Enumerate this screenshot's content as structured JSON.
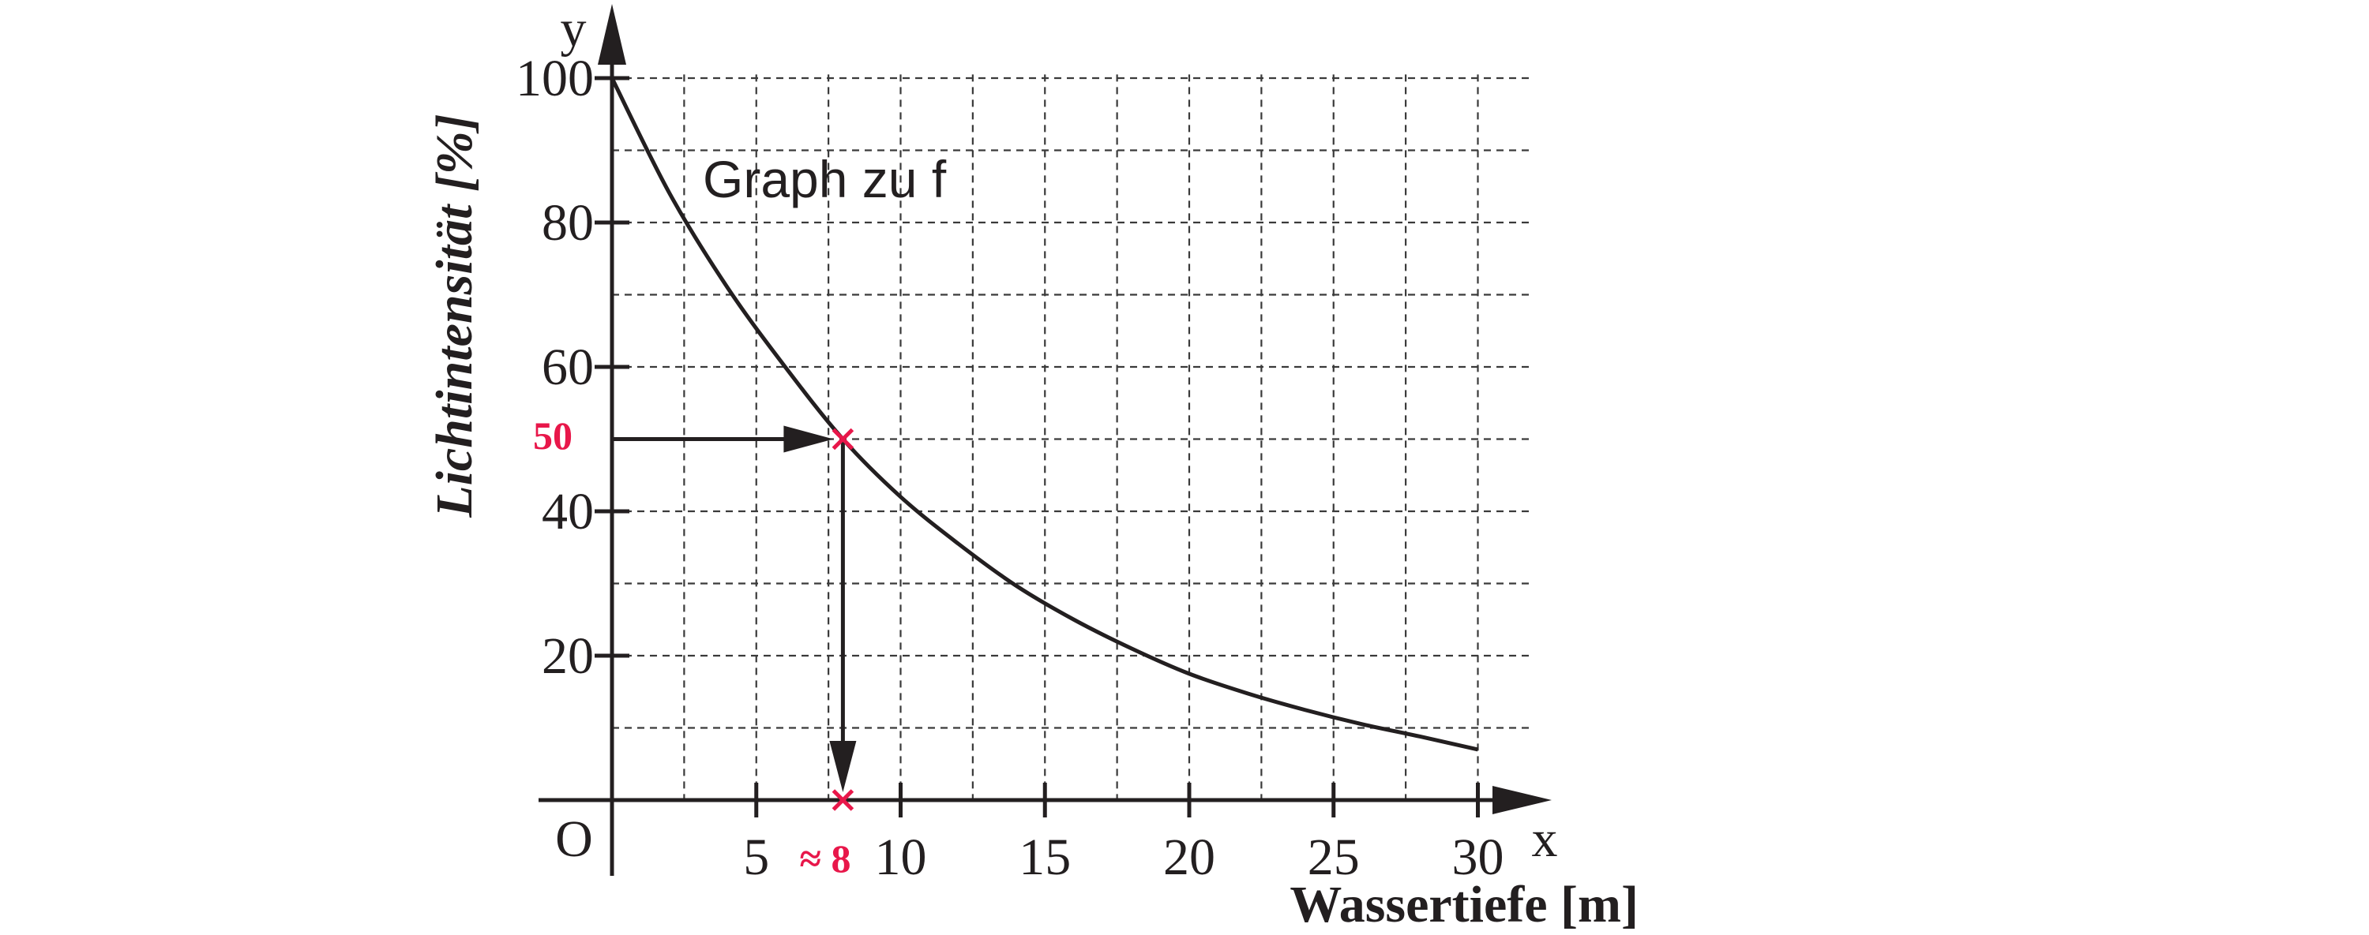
{
  "chart_data": {
    "type": "line",
    "xlabel": "Wassertiefe [m]",
    "ylabel": "Lichtintensität [%]",
    "x_axis_name": "x",
    "y_axis_name": "y",
    "origin_label": "O",
    "xlim": [
      0,
      32
    ],
    "ylim": [
      0,
      100
    ],
    "x_ticks": [
      5,
      10,
      15,
      20,
      25,
      30
    ],
    "x_tick_labels": [
      "5",
      "10",
      "15",
      "20",
      "25",
      "30"
    ],
    "y_ticks": [
      20,
      40,
      60,
      80,
      100
    ],
    "y_tick_labels": [
      "20",
      "40",
      "60",
      "80",
      "100"
    ],
    "grid": "dashed, x every 2.5, y every 10",
    "series": [
      {
        "name": "Graph zu f",
        "x": [
          0,
          2,
          4,
          6,
          8,
          10,
          12,
          14,
          16,
          18,
          20,
          22,
          24,
          26,
          28,
          30
        ],
        "y": [
          100,
          84,
          71,
          60,
          50,
          42,
          35.5,
          29.7,
          25,
          21,
          17.5,
          14.8,
          12.5,
          10.5,
          8.8,
          7
        ]
      }
    ],
    "annotations": {
      "y_value_label": "50",
      "x_value_label": "≈ 8",
      "point": {
        "x": 8,
        "y": 50
      },
      "color": "#e8174a"
    }
  }
}
